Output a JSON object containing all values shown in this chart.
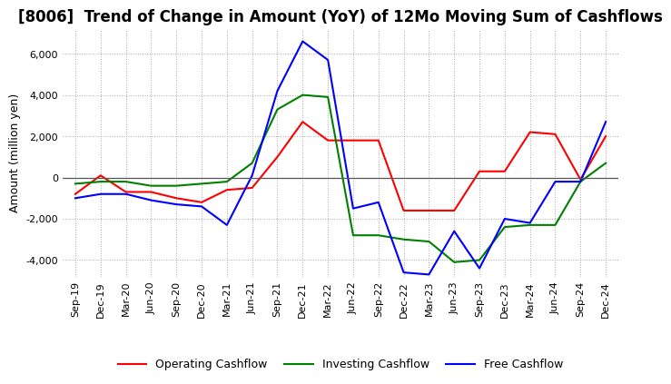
{
  "title": "[8006]  Trend of Change in Amount (YoY) of 12Mo Moving Sum of Cashflows",
  "ylabel": "Amount (million yen)",
  "ylim": [
    -4800,
    7200
  ],
  "yticks": [
    -4000,
    -2000,
    0,
    2000,
    4000,
    6000
  ],
  "x_labels": [
    "Sep-19",
    "Dec-19",
    "Mar-20",
    "Jun-20",
    "Sep-20",
    "Dec-20",
    "Mar-21",
    "Jun-21",
    "Sep-21",
    "Dec-21",
    "Mar-22",
    "Jun-22",
    "Sep-22",
    "Dec-22",
    "Mar-23",
    "Jun-23",
    "Sep-23",
    "Dec-23",
    "Mar-24",
    "Jun-24",
    "Sep-24",
    "Dec-24"
  ],
  "operating": [
    -800,
    100,
    -700,
    -700,
    -1000,
    -1200,
    -600,
    -500,
    1000,
    2700,
    1800,
    1800,
    1800,
    -1600,
    -1600,
    -1600,
    300,
    300,
    2200,
    2100,
    -100,
    2000
  ],
  "investing": [
    -300,
    -200,
    -200,
    -400,
    -400,
    -300,
    -200,
    700,
    3300,
    4000,
    3900,
    -2800,
    -2800,
    -3000,
    -3100,
    -4100,
    -4000,
    -2400,
    -2300,
    -2300,
    -200,
    700
  ],
  "free": [
    -1000,
    -800,
    -800,
    -1100,
    -1300,
    -1400,
    -2300,
    100,
    4200,
    6600,
    5700,
    -1500,
    -1200,
    -4600,
    -4700,
    -2600,
    -4400,
    -2000,
    -2200,
    -200,
    -200,
    2700
  ],
  "operating_color": "#ff0000",
  "investing_color": "#008000",
  "free_color": "#0000ff",
  "background_color": "#ffffff",
  "grid_color": "#aaaaaa",
  "zero_line_color": "#555555",
  "title_fontsize": 12,
  "axis_fontsize": 9,
  "tick_fontsize": 8,
  "legend_fontsize": 9,
  "line_width": 1.5
}
